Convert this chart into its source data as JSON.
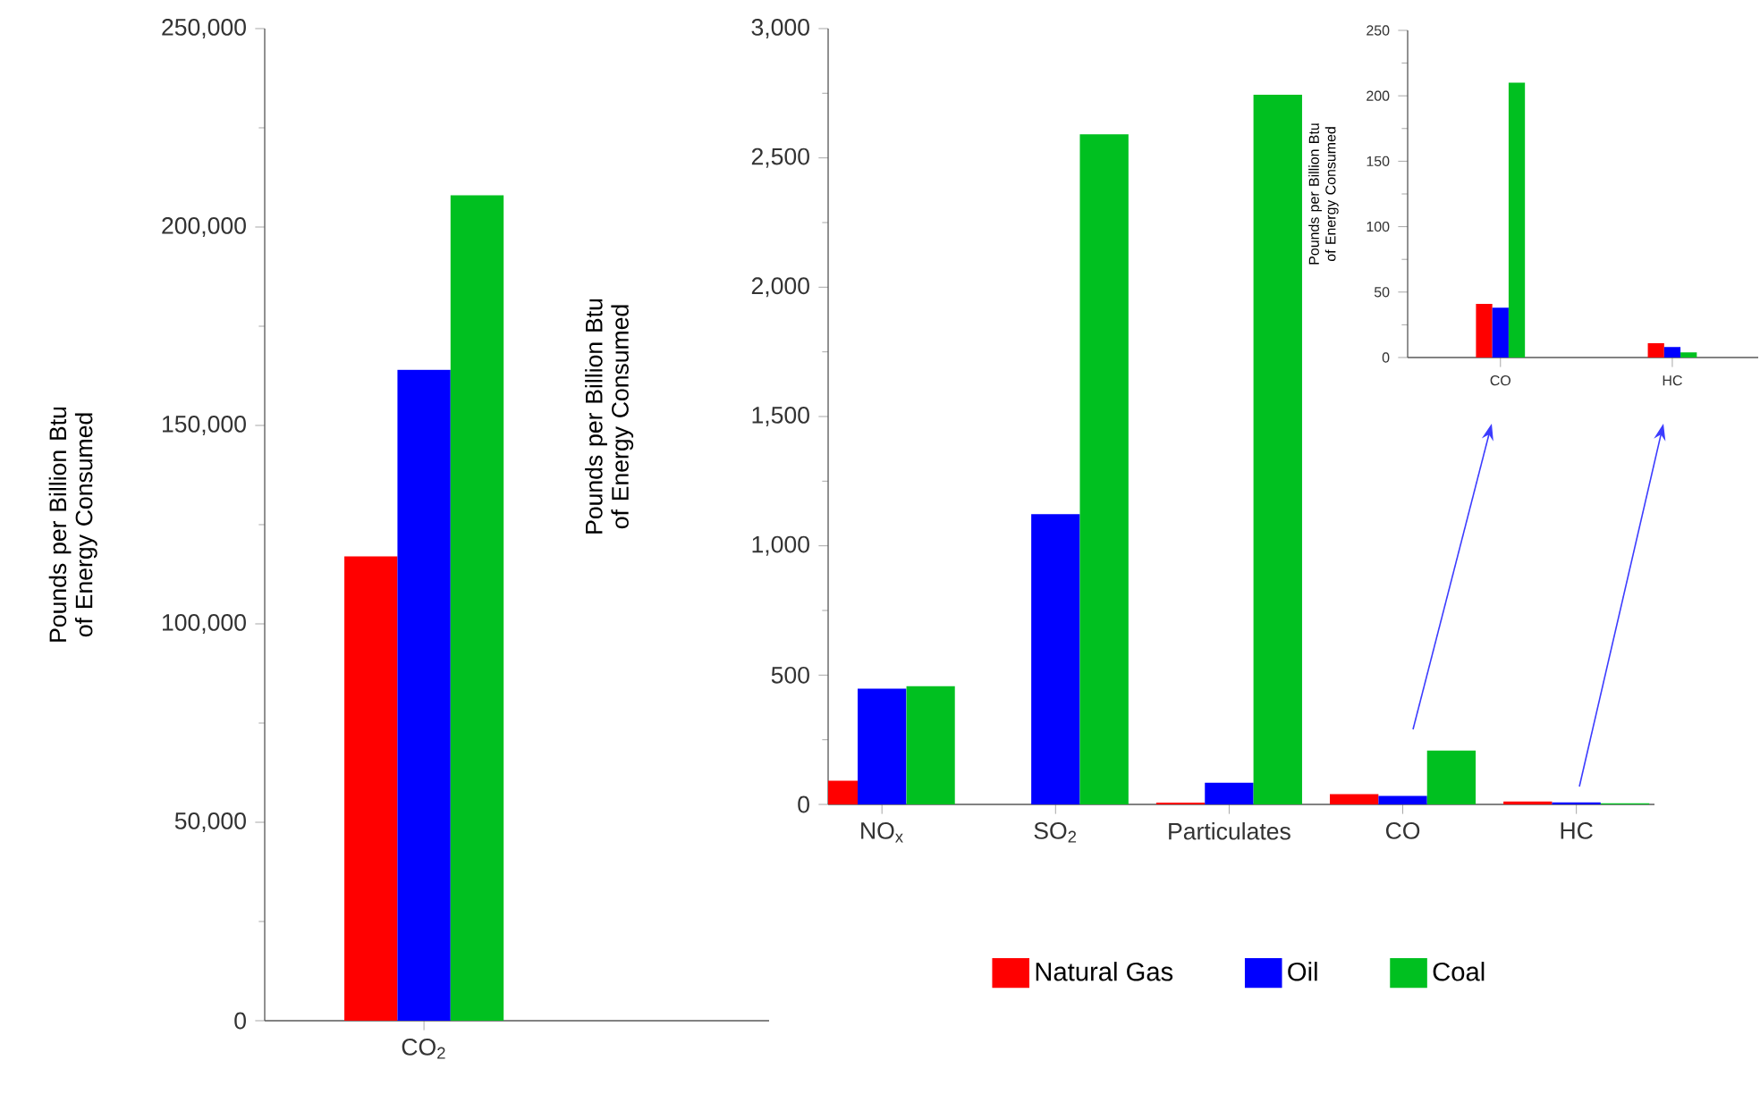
{
  "chart_data": [
    {
      "type": "bar",
      "categories": [
        "CO$_{2}$"
      ],
      "ylabel": "Pounds per Billion Btu of Energy Consumed",
      "ylim": [
        0,
        250000
      ],
      "yticks": [
        0,
        {
          "value": 50000,
          "label": "50,000"
        },
        {
          "value": 100000,
          "label": "100,000"
        },
        {
          "value": 150000,
          "label": "150,000"
        },
        {
          "value": 200000,
          "label": "200,000"
        },
        {
          "value": 250000,
          "label": "250,000"
        }
      ],
      "series": [
        {
          "color": "#ff0000",
          "values": [
            117000
          ]
        },
        {
          "color": "#0000ff",
          "values": [
            164000
          ]
        },
        {
          "color": "#00c020",
          "values": [
            208000
          ]
        }
      ]
    },
    {
      "type": "bar",
      "categories": [
        "NO$_{x}$",
        "SO$_{2}$",
        "Particulates",
        "CO",
        "HC"
      ],
      "ylabel": "Pounds per Billion Btu of Energy Consumed",
      "ylim": [
        0,
        3000
      ],
      "yticks": [
        0,
        500,
        {
          "value": 1000,
          "label": "1,000"
        },
        {
          "value": 1500,
          "label": "1,500"
        },
        {
          "value": 2000,
          "label": "2,000"
        },
        {
          "value": 2500,
          "label": "2,500"
        },
        {
          "value": 3000,
          "label": "3,000"
        }
      ],
      "legend": "bottom",
      "series": [
        {
          "name": "Natural Gas",
          "color": "#ff0000",
          "values": [
            92,
            null,
            7,
            40,
            11
          ]
        },
        {
          "name": "Oil",
          "color": "#0000ff",
          "values": [
            448,
            1122,
            84,
            33,
            8
          ]
        },
        {
          "name": "Coal",
          "color": "#00c020",
          "values": [
            457,
            2591,
            2744,
            208,
            4
          ]
        }
      ]
    },
    {
      "type": "bar",
      "categories": [
        "CO",
        "HC"
      ],
      "ylabel": "Pounds per Billion Btu of Energy Consumed",
      "ylim": [
        0,
        250
      ],
      "yticks": [
        0,
        50,
        100,
        150,
        200,
        250
      ],
      "series": [
        {
          "color": "#ff0000",
          "values": [
            41,
            11
          ]
        },
        {
          "color": "#0000ff",
          "values": [
            38,
            8
          ]
        },
        {
          "color": "#00c020",
          "values": [
            210,
            4
          ]
        }
      ]
    }
  ]
}
